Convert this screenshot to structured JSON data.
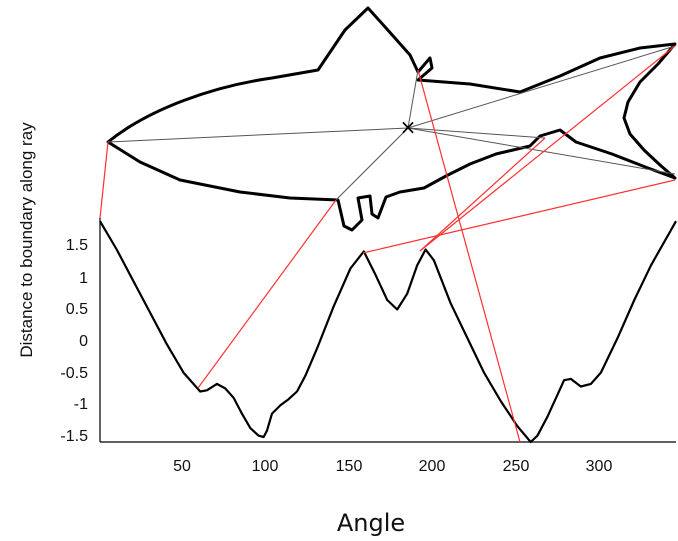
{
  "chart_data": {
    "type": "line",
    "title": "",
    "xlabel": "Angle",
    "ylabel": "Distance to boundary along ray",
    "xlim": [
      0,
      345
    ],
    "ylim": [
      -1.6,
      1.95
    ],
    "x_ticks": [
      "50",
      "100",
      "150",
      "200",
      "250",
      "300"
    ],
    "y_ticks": [
      "1.5",
      "1",
      "0.5",
      "0",
      "-0.5",
      "-1",
      "-1.5"
    ],
    "grid": false,
    "series": [
      {
        "x": [
          0,
          10,
          20,
          30,
          40,
          50,
          60,
          64,
          70,
          75,
          80,
          85,
          90,
          95,
          98,
          100,
          103,
          108,
          113,
          118,
          123,
          130,
          140,
          150,
          158,
          165,
          172,
          178,
          184,
          190,
          195,
          200,
          210,
          220,
          230,
          240,
          250,
          258,
          262,
          268,
          274,
          278,
          282,
          288,
          294,
          300,
          310,
          320,
          330,
          345
        ],
        "y": [
          1.9,
          1.45,
          0.95,
          0.45,
          -0.05,
          -0.5,
          -0.8,
          -0.78,
          -0.68,
          -0.75,
          -0.9,
          -1.15,
          -1.38,
          -1.5,
          -1.52,
          -1.42,
          -1.15,
          -1.02,
          -0.92,
          -0.8,
          -0.55,
          -0.12,
          0.55,
          1.15,
          1.42,
          1.05,
          0.65,
          0.5,
          0.75,
          1.2,
          1.45,
          1.28,
          0.6,
          0.05,
          -0.5,
          -0.95,
          -1.35,
          -1.6,
          -1.5,
          -1.2,
          -0.85,
          -0.62,
          -0.6,
          -0.72,
          -0.68,
          -0.5,
          0.05,
          0.65,
          1.2,
          1.9
        ]
      }
    ],
    "overlay": {
      "type": "fish-outline",
      "center_marker": "×",
      "ray_color": "#555555",
      "connector_color": "#ff3030"
    }
  }
}
